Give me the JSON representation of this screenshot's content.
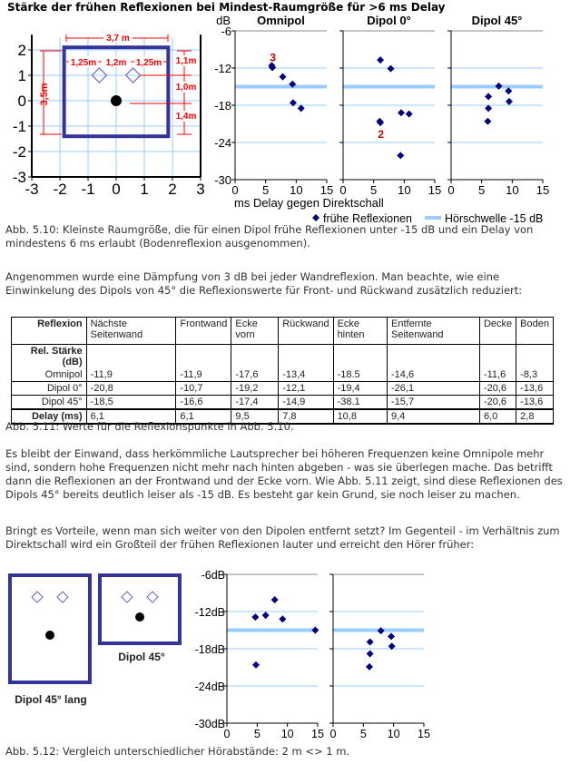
{
  "figure_510": {
    "title": "Stärke der frühen Reflexionen bei Mindest-Raumgröße für >6 ms Delay",
    "room": {
      "x_ticks": [
        "-3",
        "-2",
        "-1",
        "0",
        "1",
        "2",
        "3"
      ],
      "y_ticks": [
        "2",
        "1",
        "0",
        "-1",
        "-2",
        "-3"
      ],
      "dims": {
        "width": "3,7 m",
        "seg1": "1,25m",
        "seg2": "1,2m",
        "seg3": "1,25m",
        "depth": "3,5m",
        "d1": "1,1m",
        "d2": "1,0m",
        "d3": "1,4m"
      }
    },
    "y_unit": "dB",
    "xlabel": "ms Delay gegen Direktschall",
    "legend": {
      "points": "frühe Reflexionen",
      "threshold": "Hörschwelle -15 dB"
    },
    "annotations": {
      "omni": "3",
      "dipol0": "2"
    }
  },
  "caption_510": "Abb. 5.10: Kleinste Raumgröße, die für einen Dipol frühe Reflexionen unter -15 dB und ein Delay von mindestens 6 ms erlaubt (Bodenreflexion ausgenommen).",
  "para1": "Angenommen wurde eine Dämpfung von 3 dB bei jeder Wandreflexion. Man beachte, wie eine Einwinkelung des Dipols von 45° die Reflexionswerte für Front- und Rückwand zusätzlich reduziert:",
  "table": {
    "header": [
      "Reflexion",
      "Nächste Seitenwand",
      "Frontwand",
      "Ecke vorn",
      "Rückwand",
      "Ecke hinten",
      "Entfernte Seitenwand",
      "Decke",
      "Boden"
    ],
    "group_label": "Rel. Stärke (dB)",
    "rows": [
      {
        "label": "Omnipol",
        "values": [
          "-11,9",
          "-11,9",
          "-17,6",
          "-13,4",
          "-18.5",
          "-14,6",
          "-11,6",
          "-8,3"
        ]
      },
      {
        "label": "Dipol 0°",
        "values": [
          "-20,8",
          "-10,7",
          "-19,2",
          "-12,1",
          "-19,4",
          "-26,1",
          "-20,6",
          "-13,6"
        ]
      },
      {
        "label": "Dipol 45°",
        "values": [
          "-18,5",
          "-16,6",
          "-17,4",
          "-14,9",
          "-38.1",
          "-15,7",
          "-20,6",
          "-13,6"
        ]
      },
      {
        "label": "Delay (ms)",
        "values": [
          "6,1",
          "6,1",
          "9,5",
          "7,8",
          "10,8",
          "9,4",
          "6,0",
          "2,8"
        ]
      }
    ]
  },
  "caption_511": "Abb. 5.11: Werte für die Reflexionspunkte in Abb. 5.10.",
  "para2": "Es bleibt der Einwand, dass herkömmliche Lautsprecher bei höheren Frequenzen keine Omnipole mehr sind, sondern hohe Frequenzen nicht mehr nach hinten abgeben - was sie überlegen mache. Das betrifft dann die Reflexionen an der Frontwand und der Ecke vorn. Wie Abb. 5.11 zeigt, sind diese Reflexionen des Dipols 45° bereits deutlich leiser als -15 dB. Es besteht gar kein Grund, sie noch leiser zu machen.",
  "para3": "Bringt es Vorteile, wenn man sich weiter von den Dipolen entfernt setzt? Im Gegenteil - im Verhältnis zum Direktschall wird ein Großteil der frühen Reflexionen lauter und erreicht den Hörer früher:",
  "figure_512": {
    "room_long": "Dipol 45° lang",
    "room_short": "Dipol 45°"
  },
  "caption_512": "Abb. 5.12: Vergleich unterschiedlicher Hörabstände: 2 m <> 1 m.",
  "colors": {
    "points": "#000080",
    "threshold": "#99ccff",
    "grid": "#99ccff",
    "room": "#333399",
    "dims": "#ff0000"
  },
  "chart_data": [
    {
      "type": "scatter",
      "title": "Omnipol",
      "ylabel": "dB",
      "xlabel": "ms Delay gegen Direktschall",
      "xlim": [
        0,
        15
      ],
      "ylim": [
        -30,
        -6
      ],
      "x_ticks": [
        "0",
        "5",
        "10",
        "15"
      ],
      "y_ticks": [
        "-6",
        "-12",
        "-18",
        "-24",
        "-30"
      ],
      "threshold": -15,
      "points": [
        [
          6.1,
          -11.9
        ],
        [
          6.1,
          -11.9
        ],
        [
          9.5,
          -17.6
        ],
        [
          7.8,
          -13.4
        ],
        [
          10.8,
          -18.5
        ],
        [
          9.4,
          -14.6
        ],
        [
          6.0,
          -11.6
        ]
      ]
    },
    {
      "type": "scatter",
      "title": "Dipol  0°",
      "xlim": [
        0,
        15
      ],
      "ylim": [
        -30,
        -6
      ],
      "x_ticks": [
        "0",
        "5",
        "10",
        "15"
      ],
      "threshold": -15,
      "points": [
        [
          6.1,
          -20.8
        ],
        [
          6.1,
          -10.7
        ],
        [
          9.5,
          -19.2
        ],
        [
          7.8,
          -12.1
        ],
        [
          10.8,
          -19.4
        ],
        [
          9.4,
          -26.1
        ],
        [
          6.0,
          -20.6
        ]
      ]
    },
    {
      "type": "scatter",
      "title": "Dipol  45°",
      "xlim": [
        0,
        15
      ],
      "ylim": [
        -30,
        -6
      ],
      "x_ticks": [
        "0",
        "5",
        "10",
        "15"
      ],
      "threshold": -15,
      "points": [
        [
          6.1,
          -18.5
        ],
        [
          6.1,
          -16.6
        ],
        [
          9.5,
          -17.4
        ],
        [
          7.8,
          -14.9
        ],
        [
          9.4,
          -15.7
        ],
        [
          6.0,
          -20.6
        ]
      ]
    },
    {
      "type": "scatter",
      "title": "",
      "xlim": [
        0,
        15
      ],
      "ylim": [
        -30,
        -6
      ],
      "x_ticks": [
        "0",
        "5",
        "10",
        "15"
      ],
      "y_ticks": [
        "-6dB",
        "-12dB",
        "-18dB",
        "-24dB",
        "-30dB"
      ],
      "threshold": -15,
      "points": [
        [
          4.7,
          -12.9
        ],
        [
          6.4,
          -12.6
        ],
        [
          7.9,
          -10.1
        ],
        [
          9.2,
          -13.2
        ],
        [
          14.6,
          -15.0
        ],
        [
          4.8,
          -20.6
        ]
      ]
    },
    {
      "type": "scatter",
      "title": "",
      "xlim": [
        0,
        15
      ],
      "ylim": [
        -30,
        -6
      ],
      "x_ticks": [
        "0",
        "5",
        "10",
        "15"
      ],
      "threshold": -15,
      "points": [
        [
          7.9,
          -15.1
        ],
        [
          9.6,
          -16.0
        ],
        [
          6.1,
          -16.9
        ],
        [
          9.7,
          -17.6
        ],
        [
          6.1,
          -18.8
        ],
        [
          6.0,
          -20.9
        ]
      ]
    }
  ]
}
